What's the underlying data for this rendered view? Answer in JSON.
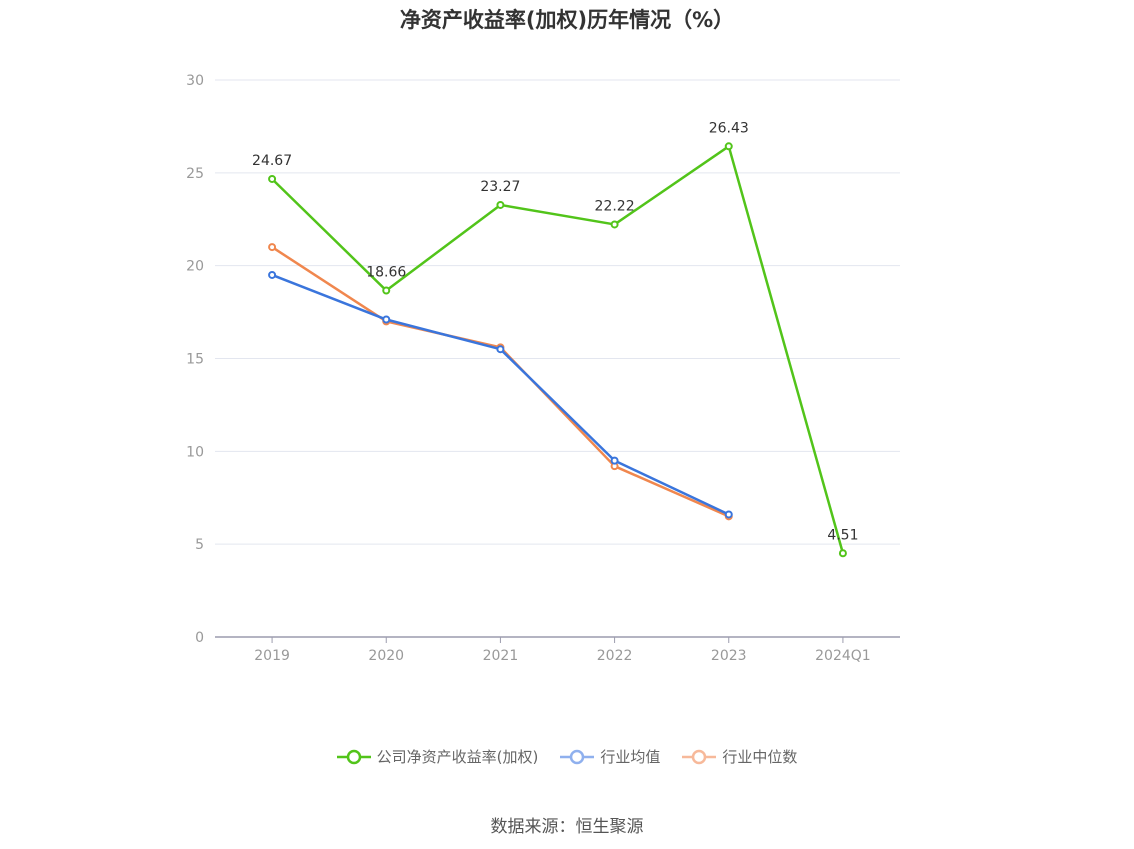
{
  "title": "净资产收益率(加权)历年情况（%）",
  "source": "数据来源：恒生聚源",
  "chart_data": {
    "type": "line",
    "x": [
      "2019",
      "2020",
      "2021",
      "2022",
      "2023",
      "2024Q1"
    ],
    "ylim": [
      0,
      30
    ],
    "yticks": [
      0,
      5,
      10,
      15,
      20,
      25,
      30
    ],
    "grid": true,
    "legend_position": "bottom",
    "series": [
      {
        "name": "公司净资产收益率(加权)",
        "color": "#52c41a",
        "values": [
          24.67,
          18.66,
          23.27,
          22.22,
          26.43,
          4.51
        ],
        "labels": [
          "24.67",
          "18.66",
          "23.27",
          "22.22",
          "26.43",
          "4.51"
        ]
      },
      {
        "name": "行业均值",
        "color": "#3a75dc",
        "values": [
          19.5,
          17.1,
          15.5,
          9.5,
          6.6,
          null
        ]
      },
      {
        "name": "行业中位数",
        "color": "#f0874e",
        "values": [
          21.0,
          17.0,
          15.6,
          9.2,
          6.5,
          null
        ]
      }
    ]
  }
}
